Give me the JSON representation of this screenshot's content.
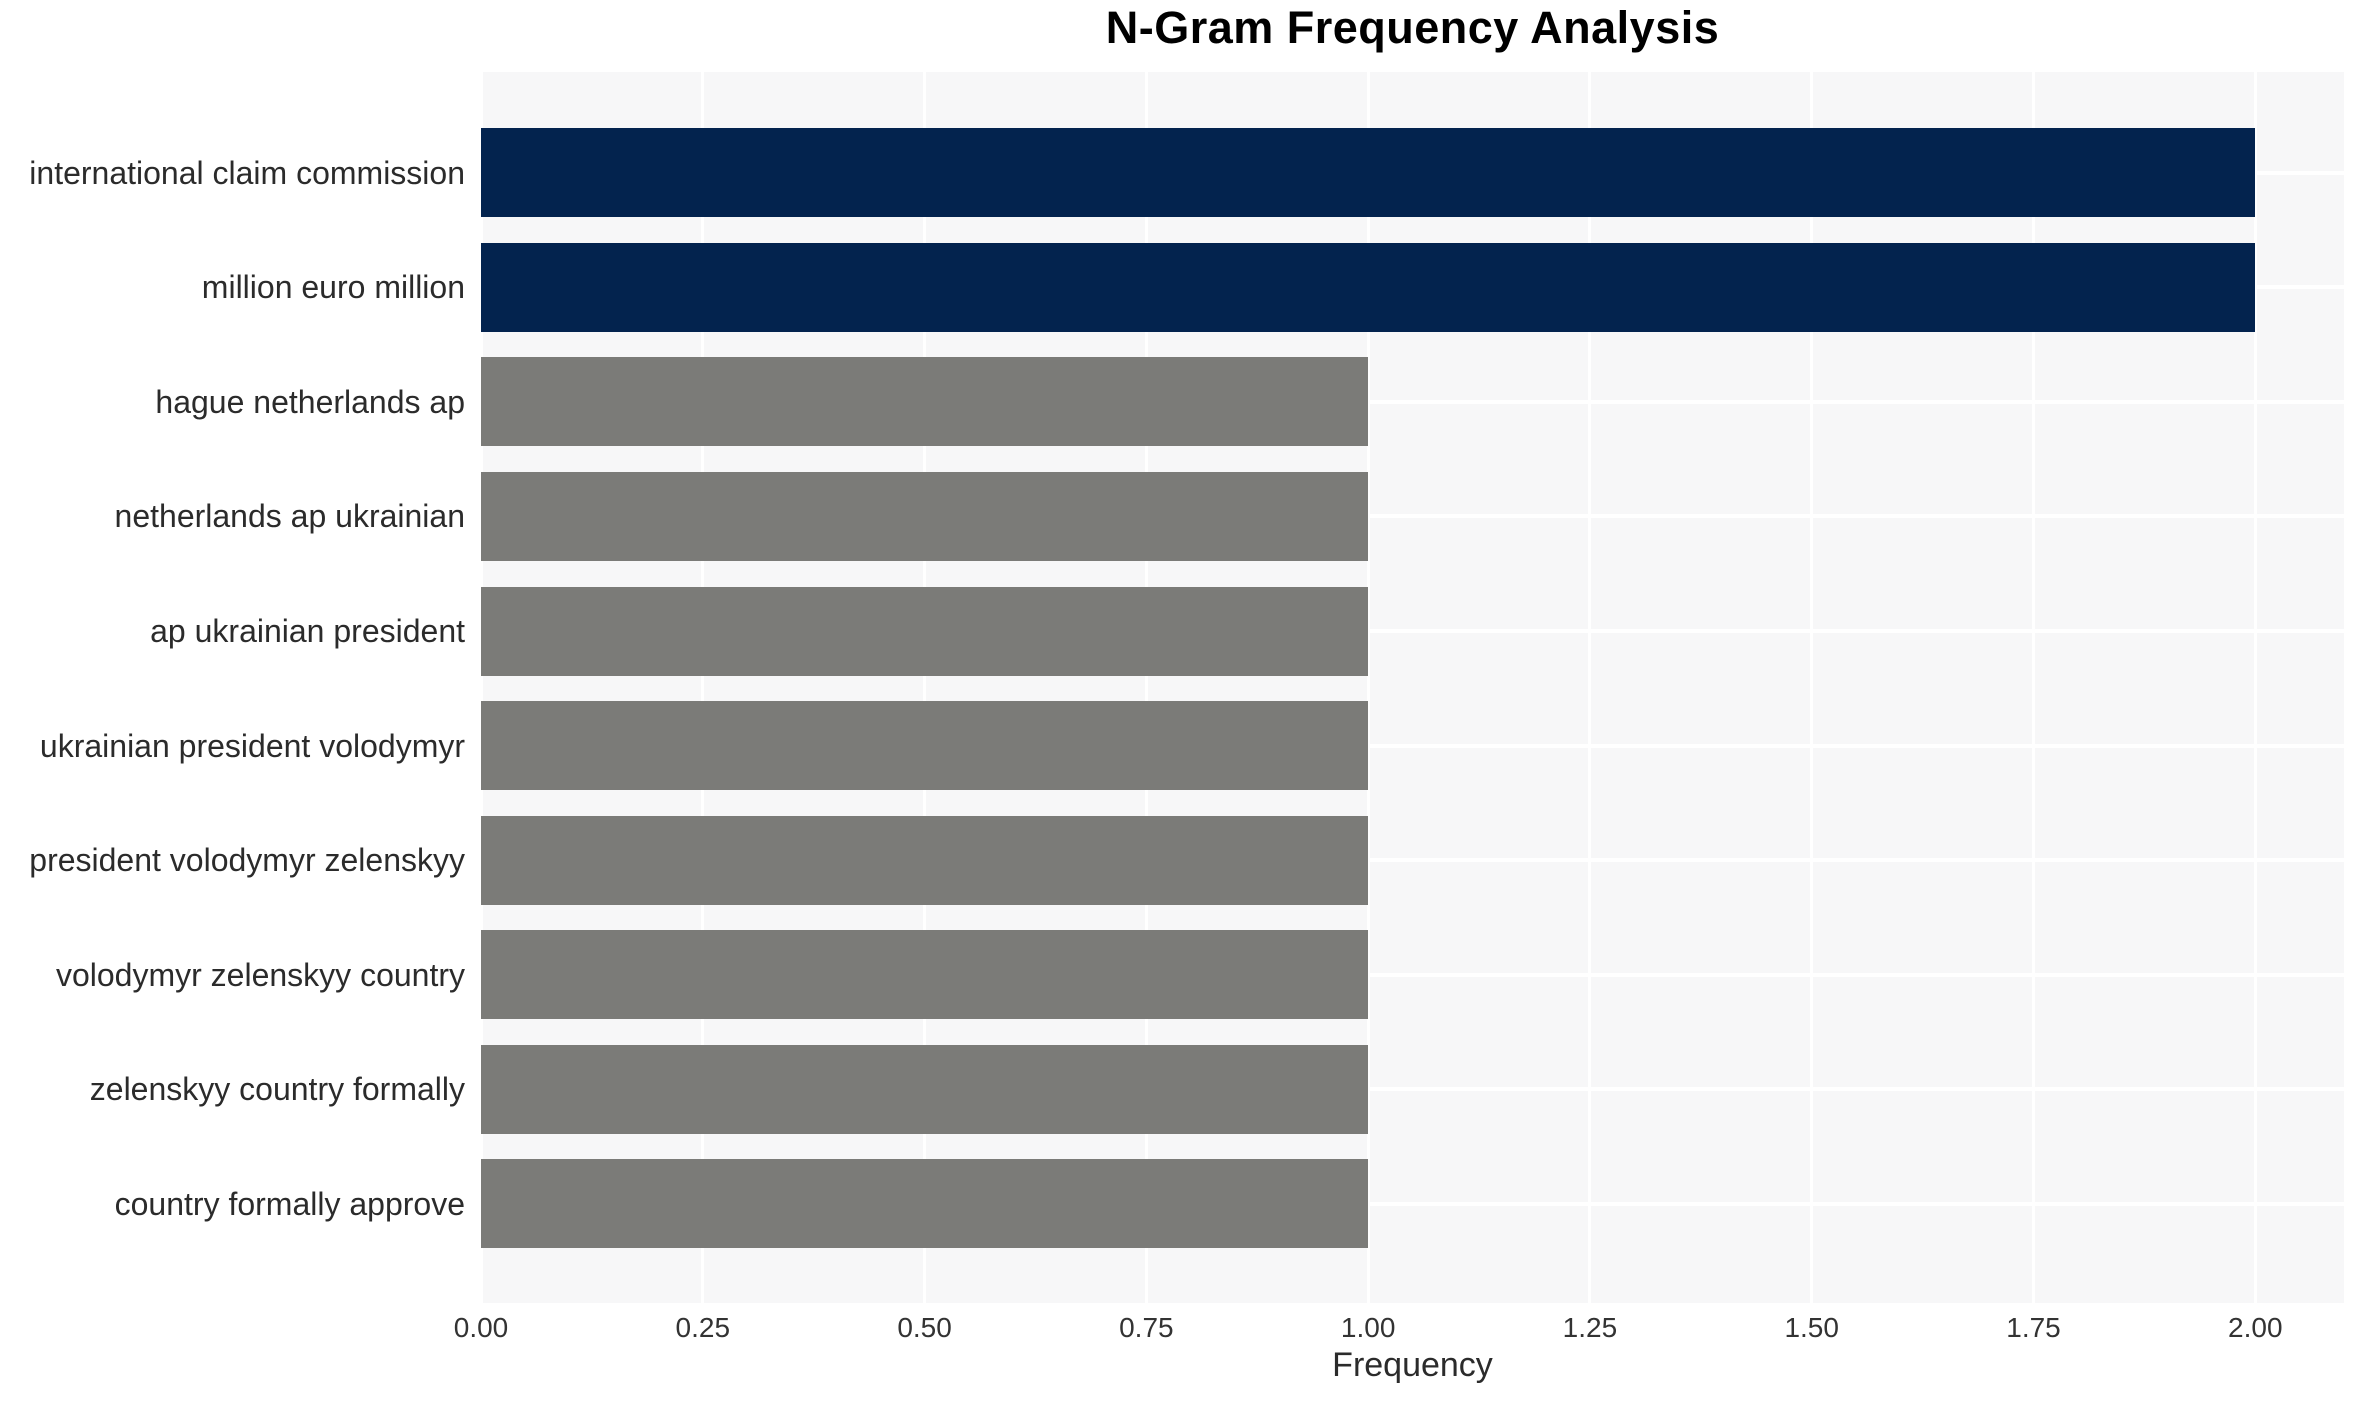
{
  "chart_data": {
    "type": "bar",
    "orientation": "horizontal",
    "title": "N-Gram Frequency Analysis",
    "xlabel": "Frequency",
    "ylabel": "",
    "categories": [
      "international claim commission",
      "million euro million",
      "hague netherlands ap",
      "netherlands ap ukrainian",
      "ap ukrainian president",
      "ukrainian president volodymyr",
      "president volodymyr zelenskyy",
      "volodymyr zelenskyy country",
      "zelenskyy country formally",
      "country formally approve"
    ],
    "values": [
      2,
      2,
      1,
      1,
      1,
      1,
      1,
      1,
      1,
      1
    ],
    "bar_colors": [
      "#03234e",
      "#03234e",
      "#7b7b78",
      "#7b7b78",
      "#7b7b78",
      "#7b7b78",
      "#7b7b78",
      "#7b7b78",
      "#7b7b78",
      "#7b7b78"
    ],
    "xlim": [
      0,
      2.1
    ],
    "xticks": [
      0,
      0.25,
      0.5,
      0.75,
      1.0,
      1.25,
      1.5,
      1.75,
      2.0
    ],
    "xtick_labels": [
      "0.00",
      "0.25",
      "0.50",
      "0.75",
      "1.00",
      "1.25",
      "1.50",
      "1.75",
      "2.00"
    ],
    "legend": "none",
    "grid": "white gridlines on light gray plot background",
    "colors": {
      "bar_high": "#03234e",
      "bar_low": "#7b7b78",
      "plot_background": "#f7f7f8",
      "gridline": "#ffffff",
      "figure_background": "#ffffff",
      "text": "#2b2b2b"
    }
  }
}
